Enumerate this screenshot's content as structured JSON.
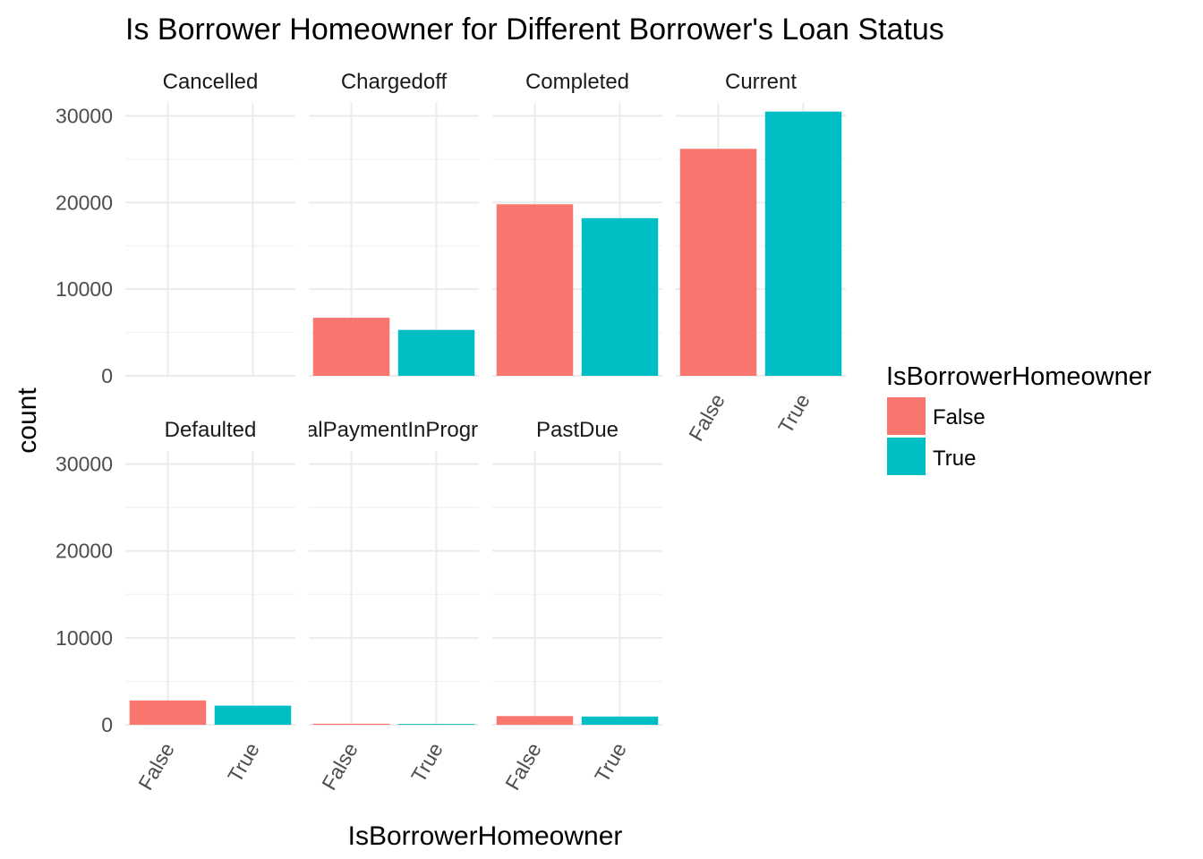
{
  "chart_data": {
    "type": "bar",
    "title": "Is Borrower Homeowner for Different Borrower's Loan Status",
    "xlabel": "IsBorrowerHomeowner",
    "ylabel": "count",
    "ylim": [
      0,
      31500
    ],
    "y_ticks": [
      0,
      10000,
      20000,
      30000
    ],
    "y_tick_labels": [
      "0",
      "10000",
      "20000",
      "30000"
    ],
    "categories": [
      "False",
      "True"
    ],
    "colors": {
      "False": "#F8766D",
      "True": "#00BFC4"
    },
    "grid": true,
    "legend": {
      "title": "IsBorrowerHomeowner",
      "placement": "right",
      "entries": [
        "False",
        "True"
      ]
    },
    "facets": [
      {
        "label": "Cancelled",
        "values": [
          3,
          2
        ]
      },
      {
        "label": "Chargedoff",
        "values": [
          6700,
          5300
        ]
      },
      {
        "label": "Completed",
        "values": [
          19800,
          18200
        ]
      },
      {
        "label": "Current",
        "values": [
          26200,
          30500
        ]
      },
      {
        "label": "Defaulted",
        "values": [
          2800,
          2200
        ]
      },
      {
        "label": "FinalPaymentInProgress",
        "values": [
          120,
          90
        ]
      },
      {
        "label": "PastDue",
        "values": [
          1000,
          950
        ]
      }
    ]
  }
}
